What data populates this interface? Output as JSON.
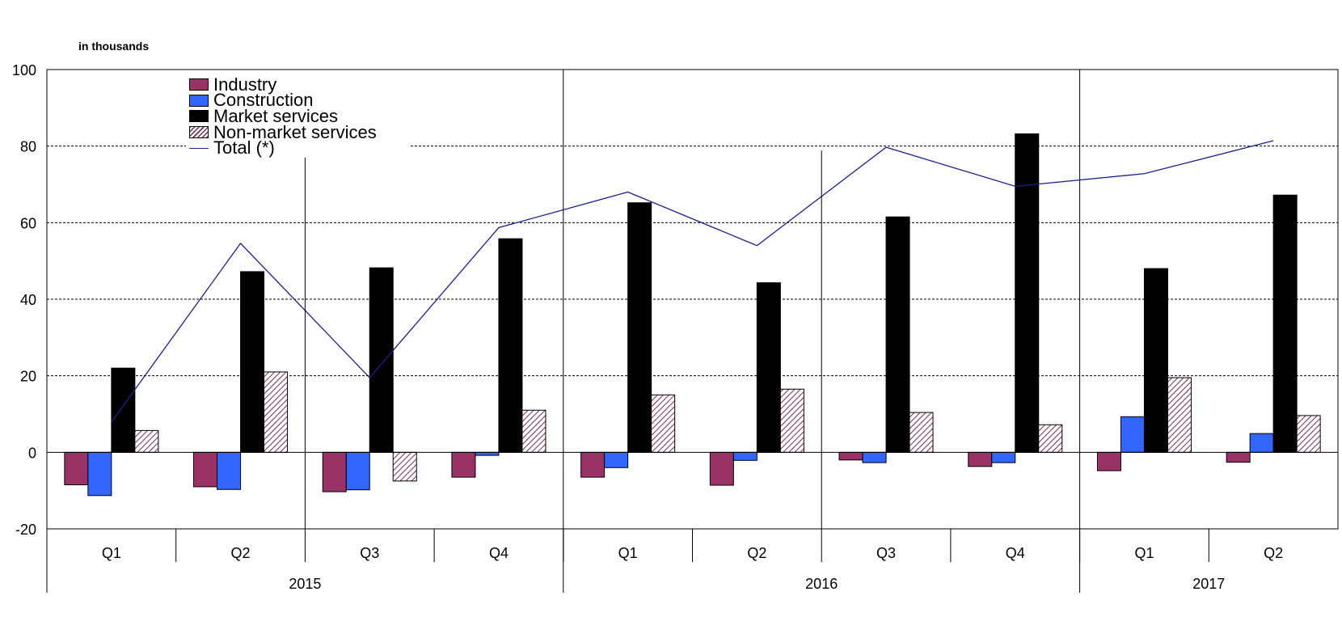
{
  "chart_data": {
    "type": "bar",
    "unit_label": "in thousands",
    "quarters": [
      "Q1",
      "Q2",
      "Q3",
      "Q4",
      "Q1",
      "Q2",
      "Q3",
      "Q4",
      "Q1",
      "Q2"
    ],
    "years": [
      {
        "label": "2015",
        "start": 0,
        "end": 4
      },
      {
        "label": "2016",
        "start": 4,
        "end": 8
      },
      {
        "label": "2017",
        "start": 8,
        "end": 10
      }
    ],
    "ylim": [
      -20,
      100
    ],
    "yticks": [
      -20,
      0,
      20,
      40,
      60,
      80,
      100
    ],
    "grid": true,
    "legend_position": "top-left",
    "series": [
      {
        "name": "Industry",
        "kind": "bar",
        "color": "#993366",
        "values": [
          -8.5,
          -9,
          -10.3,
          -6.5,
          -6.5,
          -8.6,
          -2,
          -3.7,
          -4.8,
          -2.6
        ]
      },
      {
        "name": "Construction",
        "kind": "bar",
        "color": "#3366ff",
        "values": [
          -11.3,
          -9.7,
          -9.8,
          -0.8,
          -4,
          -2.1,
          -2.7,
          -2.7,
          9.3,
          4.9
        ]
      },
      {
        "name": "Market services",
        "kind": "bar",
        "color": "#000000",
        "values": [
          22,
          47.2,
          48.2,
          55.8,
          65.2,
          44.3,
          61.5,
          83.2,
          48,
          67.2
        ]
      },
      {
        "name": "Non-market services",
        "kind": "bar-hatched",
        "color": "#7a2a5a",
        "values": [
          5.7,
          21,
          -7.5,
          11,
          15,
          16.5,
          10.4,
          7.2,
          19.5,
          9.6
        ]
      },
      {
        "name": "Total (*)",
        "kind": "line",
        "color": "#1f1f8f",
        "values": [
          7.9,
          54.6,
          19.5,
          58.7,
          68,
          54,
          79.7,
          69.5,
          72.8,
          81.4
        ]
      }
    ]
  }
}
